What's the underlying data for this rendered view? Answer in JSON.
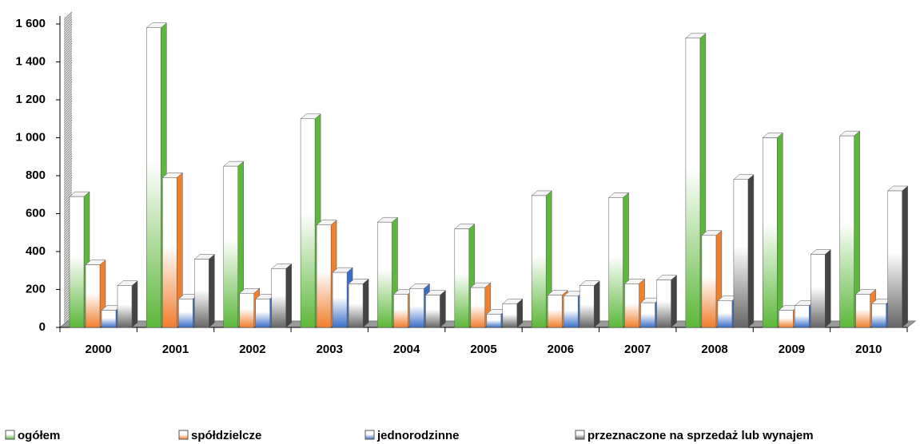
{
  "chart_data": {
    "type": "bar3d",
    "categories": [
      "2000",
      "2001",
      "2002",
      "2003",
      "2004",
      "2005",
      "2006",
      "2007",
      "2008",
      "2009",
      "2010"
    ],
    "series": [
      {
        "name": "ogółem",
        "color": "#5cb83a",
        "values": [
          690,
          1580,
          850,
          1100,
          555,
          520,
          695,
          685,
          1525,
          1000,
          1010
        ]
      },
      {
        "name": "spółdzielcze",
        "color": "#f07f2e",
        "values": [
          330,
          790,
          180,
          540,
          175,
          210,
          170,
          230,
          485,
          90,
          175
        ]
      },
      {
        "name": "jednorodzinne",
        "color": "#3a6fc8",
        "values": [
          90,
          150,
          150,
          290,
          205,
          70,
          165,
          130,
          140,
          115,
          125
        ]
      },
      {
        "name": "przeznaczone na sprzedaż lub wynajem",
        "color": "#666666",
        "values": [
          220,
          360,
          310,
          230,
          170,
          125,
          220,
          250,
          780,
          385,
          720
        ]
      }
    ],
    "ylim": [
      0,
      1600
    ],
    "yticks": [
      0,
      200,
      400,
      600,
      800,
      {
        "value": 1000,
        "label": "1 000"
      },
      {
        "value": 1200,
        "label": "1 200"
      },
      {
        "value": 1400,
        "label": "1 400"
      },
      {
        "value": 1600,
        "label": "1 600"
      }
    ],
    "legend": "bottom"
  }
}
